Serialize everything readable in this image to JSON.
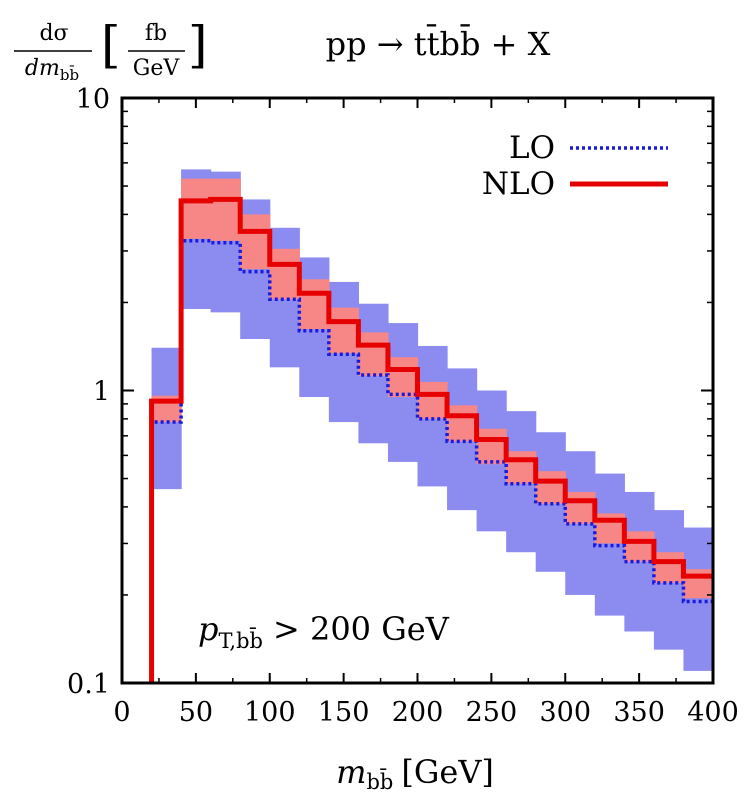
{
  "chart_data": {
    "type": "line",
    "title": "pp → tt̄bb̄ + X",
    "ylabel": {
      "numerator": "dσ",
      "denominator": "dm",
      "denominator_sub": "bb̄",
      "unit_num": "fb",
      "unit_den": "GeV"
    },
    "xlabel": {
      "symbol": "m",
      "sub": "bb̄",
      "unit": "[GeV]"
    },
    "annotation": {
      "symbol": "p",
      "sub": "T,bb̄",
      "text": "> 200 GeV"
    },
    "xlim": [
      0,
      400
    ],
    "ylim": [
      0.1,
      10
    ],
    "yscale": "log",
    "x_ticks": [
      "0",
      "50",
      "100",
      "150",
      "200",
      "250",
      "300",
      "350",
      "400"
    ],
    "y_ticks": [
      "0.1",
      "1",
      "10"
    ],
    "legend_position": "top-right",
    "bin_edges": [
      20,
      40,
      60,
      80,
      100,
      120,
      140,
      160,
      180,
      200,
      220,
      240,
      260,
      280,
      300,
      320,
      340,
      360,
      380,
      400
    ],
    "series": [
      {
        "name": "LO",
        "style": "dotted",
        "color": "#1a1adc",
        "values": [
          0.78,
          3.25,
          3.2,
          2.55,
          2.05,
          1.6,
          1.33,
          1.13,
          0.97,
          0.8,
          0.67,
          0.57,
          0.48,
          0.41,
          0.35,
          0.295,
          0.26,
          0.22,
          0.19
        ],
        "band_low": [
          0.46,
          1.9,
          1.85,
          1.5,
          1.2,
          0.95,
          0.78,
          0.66,
          0.57,
          0.47,
          0.39,
          0.33,
          0.28,
          0.24,
          0.2,
          0.17,
          0.15,
          0.13,
          0.11
        ],
        "band_high": [
          1.4,
          5.7,
          5.6,
          4.5,
          3.6,
          2.85,
          2.35,
          1.98,
          1.7,
          1.42,
          1.19,
          1.0,
          0.85,
          0.72,
          0.62,
          0.52,
          0.45,
          0.39,
          0.34
        ],
        "band_color": "#8c8cf0"
      },
      {
        "name": "NLO",
        "style": "solid",
        "color": "#e60000",
        "values": [
          0.92,
          4.45,
          4.5,
          3.5,
          2.7,
          2.15,
          1.72,
          1.43,
          1.18,
          0.97,
          0.82,
          0.68,
          0.58,
          0.49,
          0.42,
          0.36,
          0.305,
          0.26,
          0.232
        ],
        "band_low": [
          0.78,
          3.3,
          3.25,
          2.6,
          2.05,
          1.62,
          1.34,
          1.12,
          0.95,
          0.8,
          0.67,
          0.56,
          0.48,
          0.41,
          0.35,
          0.3,
          0.26,
          0.22,
          0.195
        ],
        "band_high": [
          0.96,
          5.3,
          5.3,
          4.0,
          3.05,
          2.4,
          1.92,
          1.58,
          1.3,
          1.07,
          0.89,
          0.74,
          0.62,
          0.53,
          0.45,
          0.38,
          0.33,
          0.28,
          0.245
        ],
        "band_color": "#f78787"
      }
    ]
  }
}
